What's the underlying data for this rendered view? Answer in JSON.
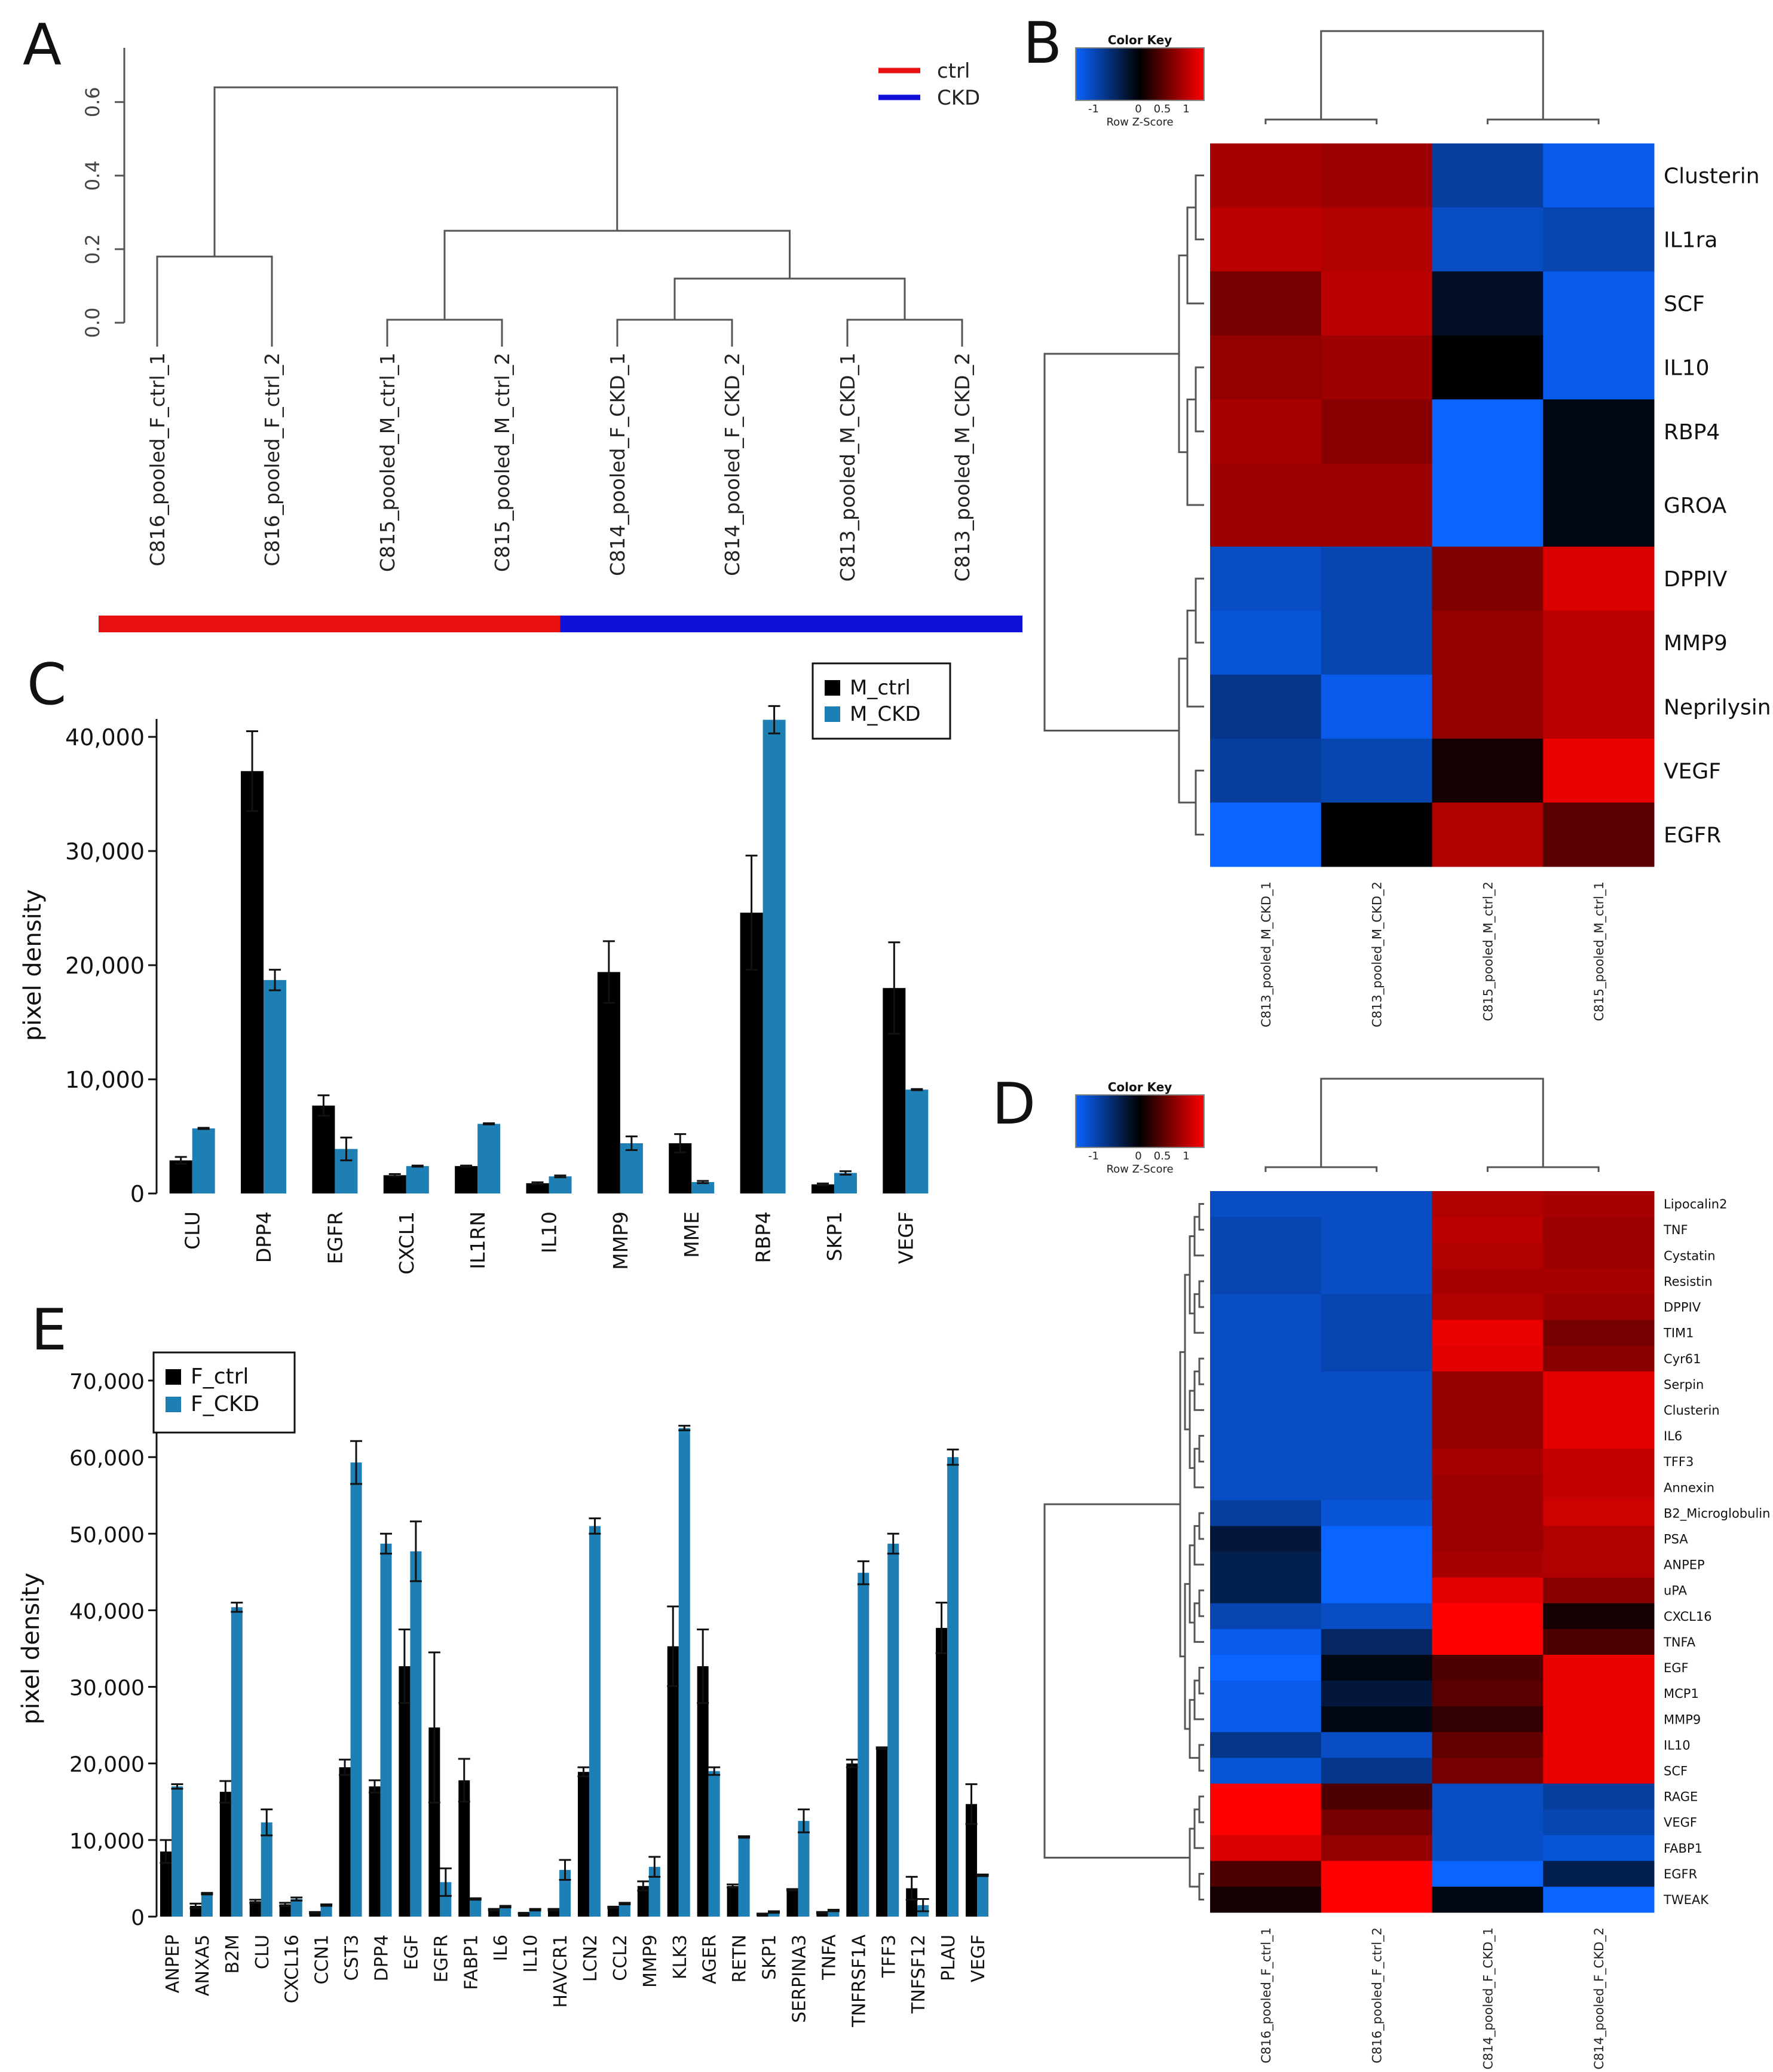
{
  "colors": {
    "ctrl": "#e81010",
    "ckd": "#1010d8",
    "bar_ctrl": "#000000",
    "bar_ckd": "#1e7fb4",
    "heat_low": "#0a64ff",
    "heat_mid": "#000000",
    "heat_high": "#ff0000"
  },
  "chart_data": [
    {
      "panel": "A",
      "type": "dendrogram",
      "yticks": [
        "0.0",
        "0.2",
        "0.4",
        "0.6"
      ],
      "ylim": [
        0,
        0.65
      ],
      "legend": [
        "ctrl",
        "CKD"
      ],
      "leaves": [
        "C816_pooled_F_ctrl_1",
        "C816_pooled_F_ctrl_2",
        "C815_pooled_M_ctrl_1",
        "C815_pooled_M_ctrl_2",
        "C814_pooled_F_CKD_1",
        "C814_pooled_F_CKD_2",
        "C813_pooled_M_CKD_1",
        "C813_pooled_M_CKD_2"
      ],
      "merges": [
        {
          "a": 0,
          "b": 1,
          "h": 0.18
        },
        {
          "a": 2,
          "b": 3,
          "h": 0.0
        },
        {
          "a": 4,
          "b": 5,
          "h": 0.0
        },
        {
          "a": 6,
          "b": 7,
          "h": 0.0
        },
        {
          "a": "m3",
          "b": "m4",
          "h": 0.12
        },
        {
          "a": "m2",
          "b": "m5",
          "h": 0.25
        },
        {
          "a": "m1",
          "b": "m6",
          "h": 0.64
        }
      ],
      "group_bar": [
        "ctrl",
        "ctrl",
        "ctrl",
        "ctrl",
        "CKD",
        "CKD",
        "CKD",
        "CKD"
      ]
    },
    {
      "panel": "B",
      "type": "heatmap",
      "key_title": "Color Key",
      "key_sub": "Row Z-Score",
      "key_ticks": [
        "-1",
        "0",
        "0.5",
        "1"
      ],
      "columns": [
        "C813_pooled_M_CKD_1",
        "C813_pooled_M_CKD_2",
        "C815_pooled_M_ctrl_2",
        "C815_pooled_M_ctrl_1"
      ],
      "rows": [
        "Clusterin",
        "IL1ra",
        "SCF",
        "IL10",
        "RBP4",
        "GROA",
        "DPPIV",
        "MMP9",
        "Neprilysin",
        "VEGF",
        "EGFR"
      ],
      "row_heights": [
        1,
        1,
        1,
        1,
        1,
        1.3,
        1,
        1,
        1,
        1,
        1
      ],
      "values": [
        [
          0.85,
          0.8,
          -0.8,
          -1.2
        ],
        [
          0.95,
          0.9,
          -1.0,
          -0.9
        ],
        [
          0.6,
          0.95,
          -0.2,
          -1.2
        ],
        [
          0.75,
          0.8,
          0.0,
          -1.2
        ],
        [
          0.85,
          0.7,
          -1.3,
          -0.1
        ],
        [
          0.8,
          0.8,
          -1.3,
          -0.1
        ],
        [
          -1.0,
          -0.9,
          0.65,
          1.1
        ],
        [
          -1.1,
          -0.9,
          0.75,
          0.95
        ],
        [
          -0.7,
          -1.2,
          0.75,
          0.95
        ],
        [
          -0.8,
          -0.9,
          0.1,
          1.2
        ],
        [
          -1.3,
          0.0,
          0.9,
          0.45
        ]
      ]
    },
    {
      "panel": "C",
      "type": "bar",
      "ylabel": "pixel density",
      "ylim": [
        0,
        40000
      ],
      "yticks": [
        "0",
        "10,000",
        "20,000",
        "30,000",
        "40,000"
      ],
      "categories": [
        "CLU",
        "DPP4",
        "EGFR",
        "CXCL1",
        "IL1RN",
        "IL10",
        "MMP9",
        "MME",
        "RBP4",
        "SKP1",
        "VEGF"
      ],
      "series": [
        {
          "name": "M_ctrl",
          "values": [
            2900,
            37000,
            7700,
            1600,
            2400,
            900,
            19400,
            4400,
            24600,
            800,
            18000
          ],
          "errors": [
            300,
            3500,
            900,
            100,
            50,
            80,
            2700,
            800,
            5000,
            80,
            4000
          ]
        },
        {
          "name": "M_CKD",
          "values": [
            5700,
            18700,
            3900,
            2400,
            6100,
            1500,
            4400,
            1000,
            41500,
            1800,
            9100
          ],
          "errors": [
            50,
            900,
            1000,
            50,
            50,
            80,
            600,
            100,
            1200,
            150,
            50
          ]
        }
      ]
    },
    {
      "panel": "D",
      "type": "heatmap",
      "key_title": "Color Key",
      "key_sub": "Row Z-Score",
      "key_ticks": [
        "-1",
        "0",
        "0.5",
        "1"
      ],
      "columns": [
        "C816_pooled_F_ctrl_1",
        "C816_pooled_F_ctrl_2",
        "C814_pooled_F_CKD_1",
        "C814_pooled_F_CKD_2"
      ],
      "rows": [
        "Lipocalin2",
        "TNF",
        "Cystatin",
        "Resistin",
        "DPPIV",
        "TIM1",
        "Cyr61",
        "Serpin",
        "Clusterin",
        "IL6",
        "TFF3",
        "Annexin",
        "B2_Microglobulin",
        "PSA",
        "ANPEP",
        "uPA",
        "CXCL16",
        "TNFA",
        "EGF",
        "MCP1",
        "MMP9",
        "IL10",
        "SCF",
        "RAGE",
        "VEGF",
        "FABP1",
        "EGFR",
        "TWEAK"
      ],
      "values": [
        [
          -1.0,
          -1.0,
          0.9,
          0.85
        ],
        [
          -0.9,
          -1.0,
          0.95,
          0.8
        ],
        [
          -0.9,
          -1.0,
          0.9,
          0.8
        ],
        [
          -0.9,
          -1.0,
          0.85,
          0.85
        ],
        [
          -1.0,
          -0.9,
          0.9,
          0.8
        ],
        [
          -1.0,
          -0.9,
          1.2,
          0.6
        ],
        [
          -1.0,
          -0.9,
          1.15,
          0.7
        ],
        [
          -1.0,
          -1.0,
          0.75,
          1.15
        ],
        [
          -1.0,
          -1.0,
          0.75,
          1.15
        ],
        [
          -1.0,
          -1.0,
          0.75,
          1.15
        ],
        [
          -1.0,
          -1.0,
          0.85,
          1.0
        ],
        [
          -1.0,
          -1.0,
          0.8,
          1.0
        ],
        [
          -0.8,
          -1.1,
          0.8,
          1.05
        ],
        [
          -0.3,
          -1.3,
          0.8,
          0.9
        ],
        [
          -0.4,
          -1.3,
          0.85,
          0.9
        ],
        [
          -0.4,
          -1.3,
          1.15,
          0.7
        ],
        [
          -0.9,
          -1.0,
          1.3,
          0.1
        ],
        [
          -1.2,
          -0.5,
          1.3,
          0.4
        ],
        [
          -1.3,
          -0.1,
          0.4,
          1.2
        ],
        [
          -1.2,
          -0.3,
          0.45,
          1.2
        ],
        [
          -1.2,
          -0.1,
          0.25,
          1.2
        ],
        [
          -0.7,
          -1.0,
          0.5,
          1.2
        ],
        [
          -1.1,
          -0.7,
          0.6,
          1.2
        ],
        [
          1.3,
          0.4,
          -1.0,
          -0.8
        ],
        [
          1.3,
          0.6,
          -1.0,
          -0.9
        ],
        [
          1.1,
          0.75,
          -1.0,
          -1.1
        ],
        [
          0.4,
          1.3,
          -1.3,
          -0.4
        ],
        [
          0.1,
          1.3,
          -0.1,
          -1.3
        ]
      ]
    },
    {
      "panel": "E",
      "type": "bar",
      "ylabel": "pixel density",
      "ylim": [
        0,
        70000
      ],
      "yticks": [
        "0",
        "10,000",
        "20,000",
        "30,000",
        "40,000",
        "50,000",
        "60,000",
        "70,000"
      ],
      "categories": [
        "ANPEP",
        "ANXA5",
        "B2M",
        "CLU",
        "CXCL16",
        "CCN1",
        "CST3",
        "DPP4",
        "EGF",
        "EGFR",
        "FABP1",
        "IL6",
        "IL10",
        "HAVCR1",
        "LCN2",
        "CCL2",
        "MMP9",
        "KLK3",
        "AGER",
        "RETN",
        "SKP1",
        "SERPINA3",
        "TNFA",
        "TNFRSF1A",
        "TFF3",
        "TNFSF12",
        "PLAU",
        "VEGF"
      ],
      "series": [
        {
          "name": "F_ctrl",
          "values": [
            8500,
            1400,
            16300,
            2000,
            1600,
            500,
            19500,
            17000,
            32700,
            24700,
            17800,
            900,
            400,
            900,
            18900,
            1200,
            4000,
            35300,
            32700,
            4000,
            300,
            3500,
            500,
            20000,
            22000,
            3700,
            37700,
            14700
          ],
          "errors": [
            1500,
            300,
            1400,
            200,
            200,
            100,
            1000,
            800,
            4800,
            9800,
            2800,
            100,
            100,
            100,
            600,
            100,
            600,
            5200,
            4800,
            200,
            100,
            100,
            100,
            500,
            100,
            1500,
            3300,
            2600
          ]
        },
        {
          "name": "F_CKD",
          "values": [
            17000,
            3000,
            40400,
            12300,
            2300,
            1500,
            59300,
            48700,
            47700,
            4500,
            2300,
            1300,
            900,
            6100,
            51000,
            1700,
            6500,
            63800,
            19000,
            10400,
            600,
            12500,
            800,
            44900,
            48700,
            1500,
            60000,
            5400
          ],
          "errors": [
            300,
            100,
            600,
            1700,
            200,
            100,
            2800,
            1300,
            3900,
            1800,
            100,
            100,
            100,
            1300,
            1000,
            100,
            1300,
            300,
            500,
            100,
            100,
            1500,
            100,
            1500,
            1300,
            800,
            1000,
            100
          ]
        }
      ]
    }
  ]
}
